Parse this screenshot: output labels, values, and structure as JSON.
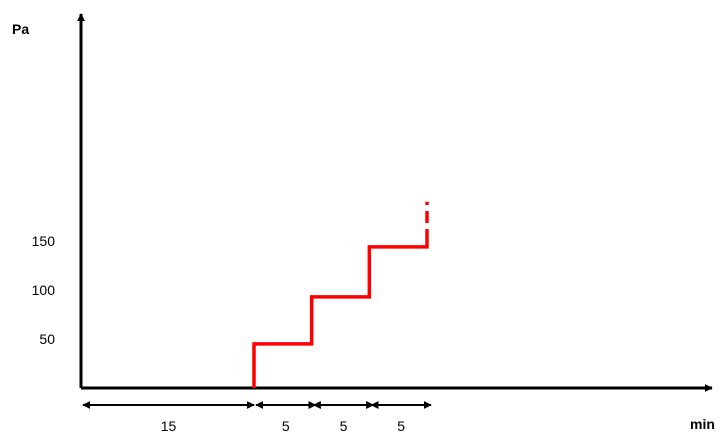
{
  "chart_data": {
    "type": "line",
    "title": "",
    "xlabel": "min",
    "ylabel": "Pa",
    "xlim": [
      0,
      33
    ],
    "ylim": [
      0,
      200
    ],
    "y_ticks": [
      {
        "value": 50,
        "label": "50"
      },
      {
        "value": 100,
        "label": "100"
      },
      {
        "value": 150,
        "label": "150"
      }
    ],
    "grid": false,
    "series": [
      {
        "color": "#ff0000",
        "style": "step",
        "points": [
          {
            "x": 15,
            "y": 0
          },
          {
            "x": 15,
            "y": 45
          },
          {
            "x": 20,
            "y": 45
          },
          {
            "x": 20,
            "y": 93
          },
          {
            "x": 25,
            "y": 93
          },
          {
            "x": 25,
            "y": 144
          },
          {
            "x": 30,
            "y": 144
          },
          {
            "x": 30,
            "y": 150
          }
        ],
        "dashed_continuation": [
          {
            "x": 30,
            "y": 150
          },
          {
            "x": 30,
            "y": 190
          }
        ]
      }
    ],
    "intervals": [
      {
        "start": 0,
        "end": 15,
        "label": "15"
      },
      {
        "start": 15,
        "end": 20,
        "label": "5"
      },
      {
        "start": 20,
        "end": 25,
        "label": "5"
      },
      {
        "start": 25,
        "end": 30,
        "label": "5"
      }
    ]
  }
}
